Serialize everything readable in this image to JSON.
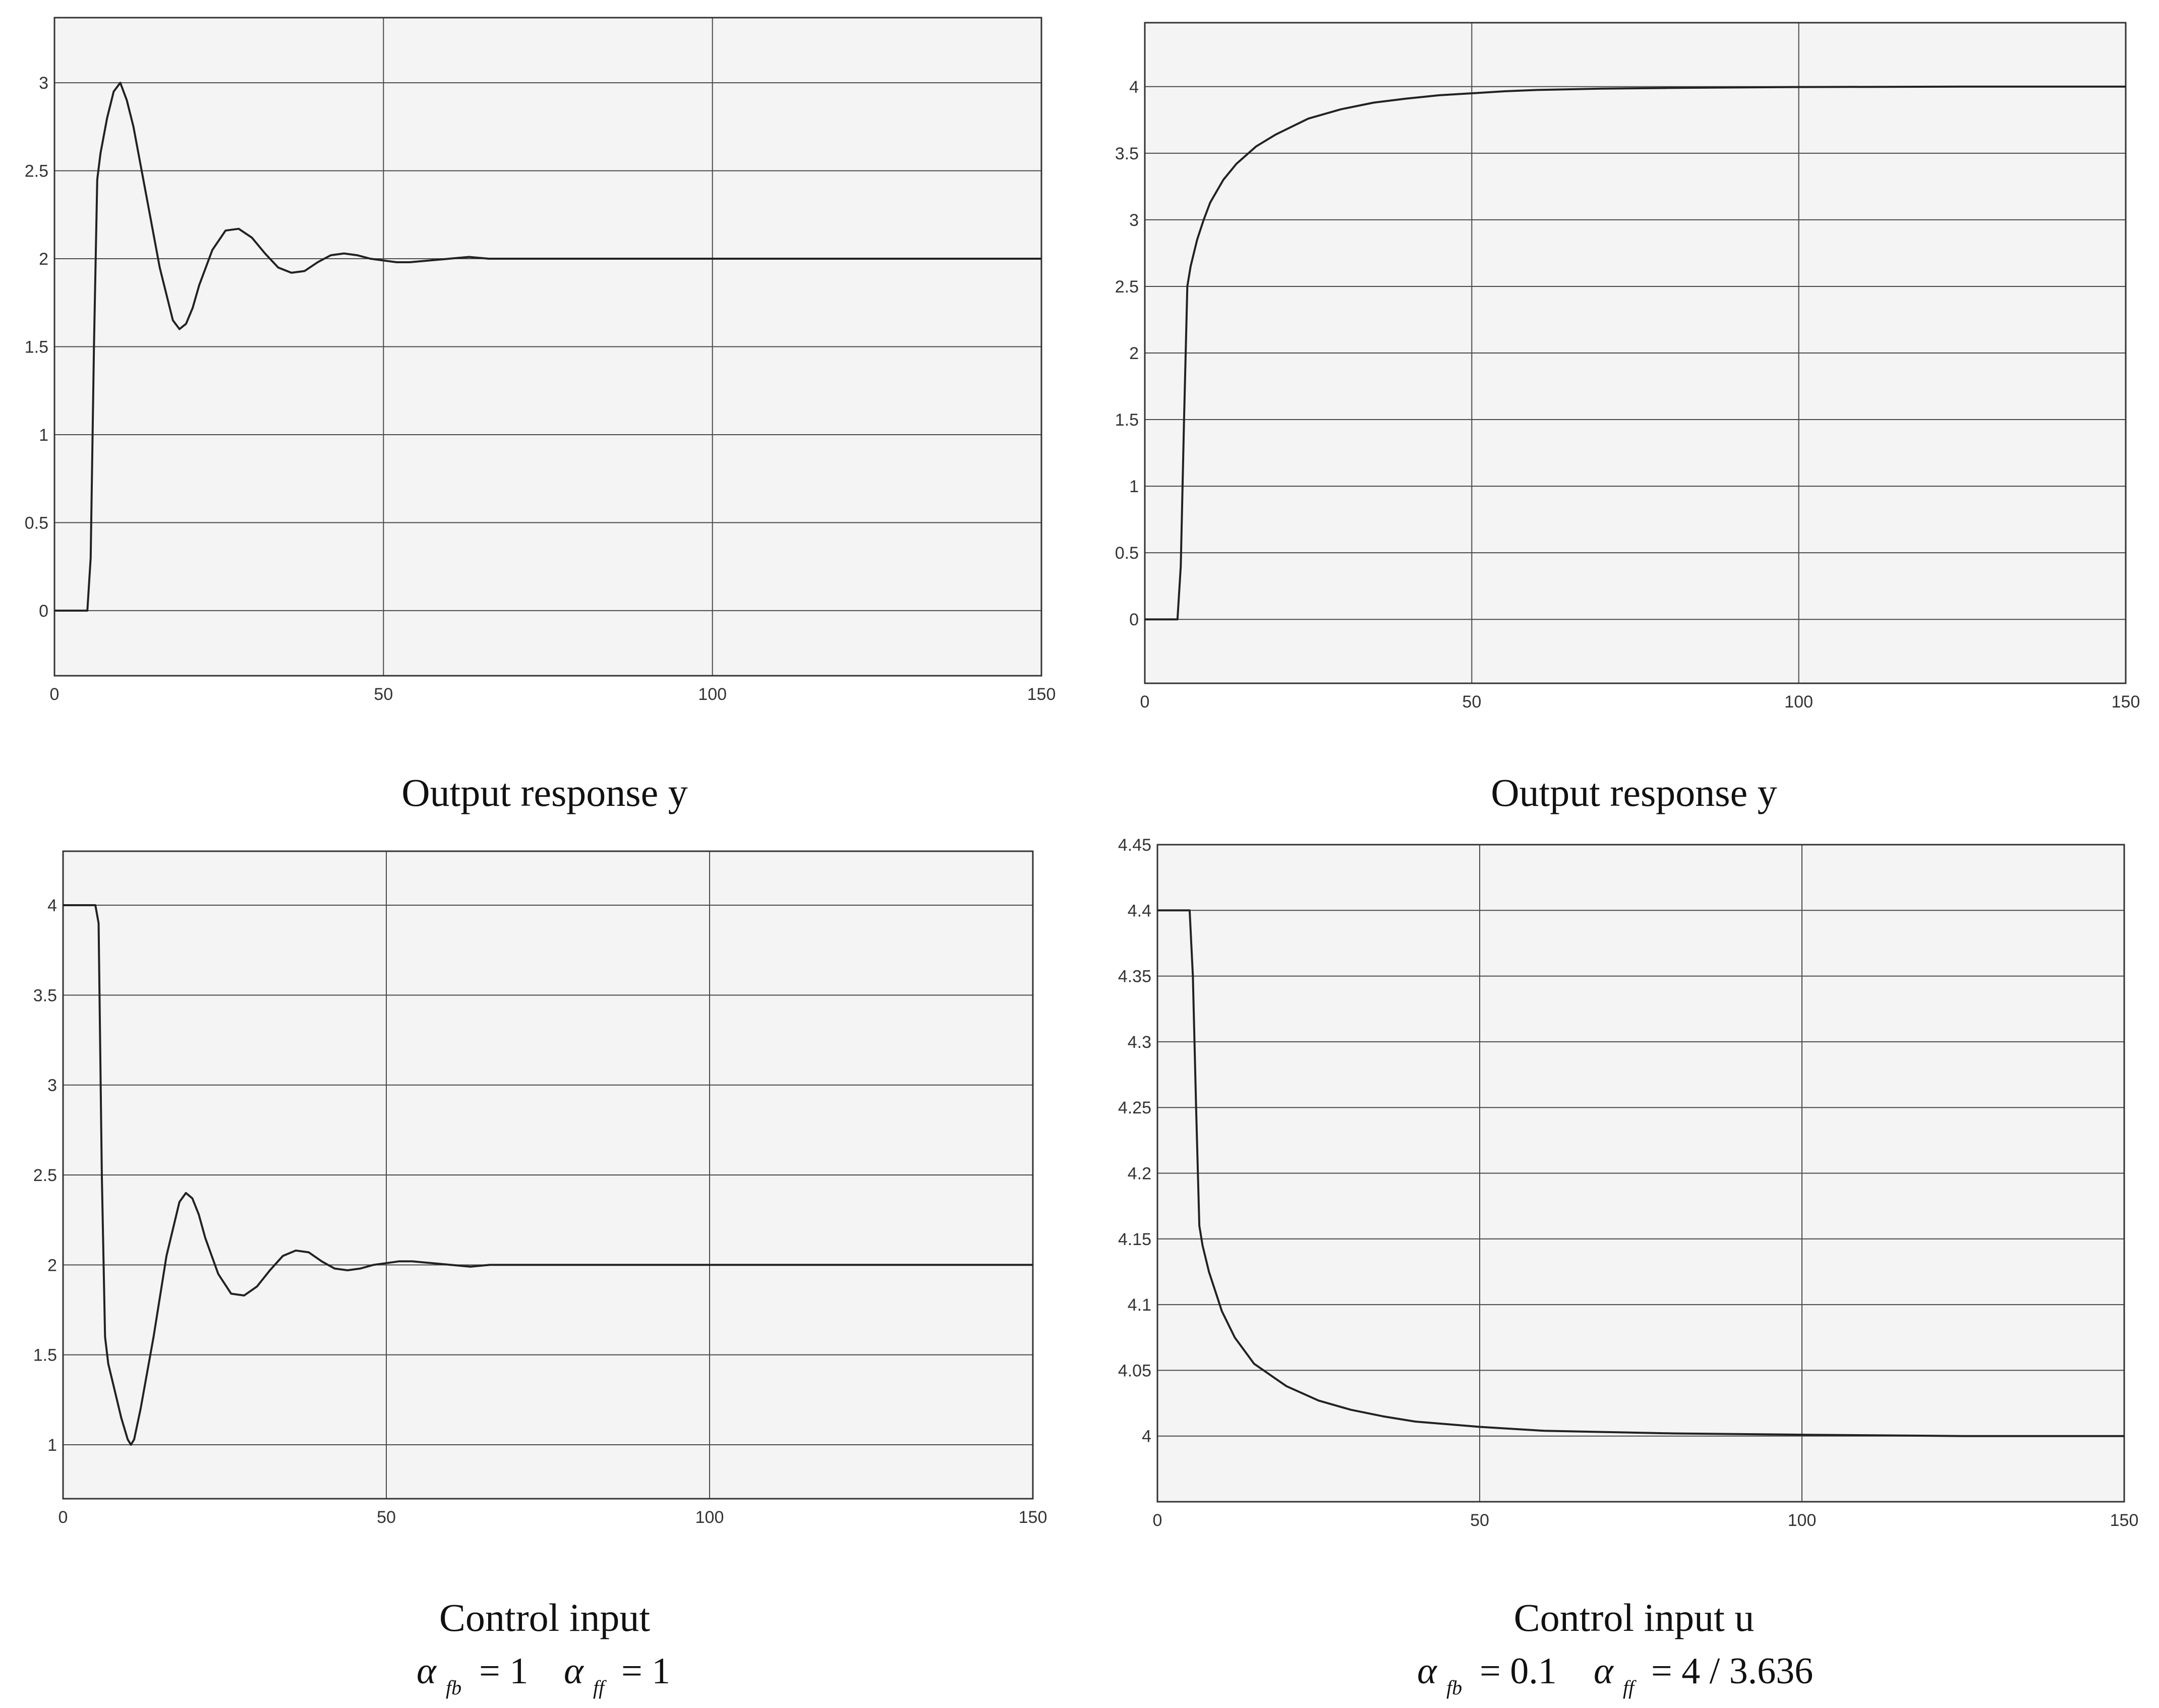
{
  "colors": {
    "panel_bg": "#f4f4f4",
    "grid": "#4a4a4a",
    "line": "#222222",
    "axes": "#333333"
  },
  "chart_data": [
    {
      "type": "line",
      "caption": "Output response y",
      "xlim": [
        0,
        150
      ],
      "ylim": [
        -0.37,
        3.37
      ],
      "xticks": [
        0,
        50,
        100,
        150
      ],
      "yticks": [
        0,
        0.5,
        1,
        1.5,
        2,
        2.5,
        3
      ],
      "grid": true,
      "series": [
        {
          "name": "y",
          "x": [
            0,
            5,
            5.5,
            6,
            6.5,
            7,
            8,
            9,
            10,
            11,
            12,
            14,
            16,
            18,
            19,
            20,
            21,
            22,
            24,
            26,
            28,
            30,
            32,
            34,
            36,
            38,
            40,
            42,
            44,
            46,
            48,
            50,
            52,
            54,
            57,
            60,
            63,
            66,
            70,
            75,
            80,
            90,
            100,
            125,
            150
          ],
          "y": [
            0,
            0,
            0.3,
            1.5,
            2.45,
            2.6,
            2.8,
            2.95,
            3.0,
            2.9,
            2.75,
            2.35,
            1.95,
            1.65,
            1.6,
            1.63,
            1.72,
            1.85,
            2.05,
            2.16,
            2.17,
            2.12,
            2.03,
            1.95,
            1.92,
            1.93,
            1.98,
            2.02,
            2.03,
            2.02,
            2.0,
            1.99,
            1.98,
            1.98,
            1.99,
            2.0,
            2.01,
            2.0,
            2.0,
            2.0,
            2.0,
            2.0,
            2.0,
            2.0,
            2.0
          ]
        }
      ]
    },
    {
      "type": "line",
      "caption": "Output response y",
      "xlim": [
        0,
        150
      ],
      "ylim": [
        -0.48,
        4.48
      ],
      "xticks": [
        0,
        50,
        100,
        150
      ],
      "yticks": [
        0,
        0.5,
        1,
        1.5,
        2,
        2.5,
        3,
        3.5,
        4
      ],
      "grid": true,
      "series": [
        {
          "name": "y",
          "x": [
            0,
            5,
            5.5,
            6,
            6.5,
            7,
            8,
            9,
            10,
            12,
            14,
            17,
            20,
            25,
            30,
            35,
            40,
            45,
            50,
            55,
            60,
            70,
            80,
            100,
            125,
            150
          ],
          "y": [
            0,
            0,
            0.4,
            1.5,
            2.5,
            2.65,
            2.85,
            3.0,
            3.13,
            3.3,
            3.42,
            3.55,
            3.64,
            3.76,
            3.83,
            3.88,
            3.91,
            3.935,
            3.95,
            3.965,
            3.975,
            3.985,
            3.99,
            3.997,
            4.0,
            4.0
          ]
        }
      ]
    },
    {
      "type": "line",
      "caption": "Control input",
      "xlim": [
        0,
        150
      ],
      "ylim": [
        0.7,
        4.3
      ],
      "xticks": [
        0,
        50,
        100,
        150
      ],
      "yticks": [
        1,
        1.5,
        2,
        2.5,
        3,
        3.5,
        4
      ],
      "grid": true,
      "series": [
        {
          "name": "u",
          "x": [
            0,
            5,
            5.5,
            6,
            6.5,
            7,
            8,
            9,
            10,
            10.5,
            11,
            12,
            14,
            16,
            18,
            19,
            20,
            21,
            22,
            24,
            26,
            28,
            30,
            32,
            34,
            36,
            38,
            40,
            42,
            44,
            46,
            48,
            50,
            52,
            54,
            57,
            60,
            63,
            66,
            70,
            75,
            80,
            90,
            100,
            125,
            150
          ],
          "y": [
            4,
            4,
            3.9,
            2.5,
            1.6,
            1.45,
            1.3,
            1.15,
            1.03,
            1.0,
            1.03,
            1.2,
            1.6,
            2.05,
            2.35,
            2.4,
            2.37,
            2.28,
            2.15,
            1.95,
            1.84,
            1.83,
            1.88,
            1.97,
            2.05,
            2.08,
            2.07,
            2.02,
            1.98,
            1.97,
            1.98,
            2.0,
            2.01,
            2.02,
            2.02,
            2.01,
            2.0,
            1.99,
            2.0,
            2.0,
            2.0,
            2.0,
            2.0,
            2.0,
            2.0,
            2.0
          ]
        }
      ]
    },
    {
      "type": "line",
      "caption": "Control input u",
      "xlim": [
        0,
        150
      ],
      "ylim": [
        3.95,
        4.45
      ],
      "xticks": [
        0,
        50,
        100,
        150
      ],
      "yticks": [
        4,
        4.05,
        4.1,
        4.15,
        4.2,
        4.25,
        4.3,
        4.35,
        4.4,
        4.45
      ],
      "grid": true,
      "series": [
        {
          "name": "u",
          "x": [
            0,
            5,
            5.5,
            6,
            6.5,
            7,
            8,
            10,
            12,
            15,
            20,
            25,
            30,
            35,
            40,
            50,
            60,
            70,
            80,
            100,
            125,
            150
          ],
          "y": [
            4.4,
            4.4,
            4.35,
            4.25,
            4.16,
            4.145,
            4.125,
            4.095,
            4.075,
            4.055,
            4.038,
            4.027,
            4.02,
            4.015,
            4.011,
            4.007,
            4.004,
            4.003,
            4.002,
            4.001,
            4.0,
            4.0
          ]
        }
      ]
    }
  ],
  "params": [
    {
      "alpha": "α",
      "sub_fb": "fb",
      "fb_value": "= 1",
      "sub_ff": "ff",
      "ff_value": "= 1"
    },
    {
      "alpha": "α",
      "sub_fb": "fb",
      "fb_value": "= 0.1",
      "sub_ff": "ff",
      "ff_value": "= 4 / 3.636"
    }
  ]
}
